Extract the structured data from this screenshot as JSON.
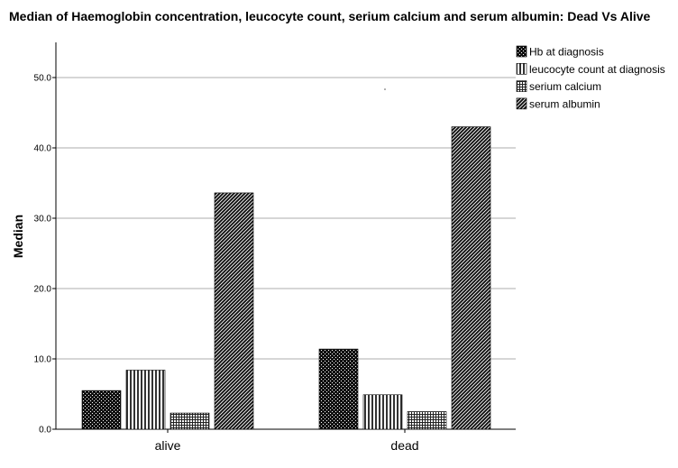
{
  "chart_data": {
    "type": "bar",
    "title": "Median of Haemoglobin concentration, leucocyte count, serium calcium and serum albumin: Dead Vs Alive",
    "ylabel": "Median",
    "xlabel": "",
    "categories": [
      "alive",
      "dead"
    ],
    "series": [
      {
        "name": "Hb at diagnosis",
        "values": [
          5.5,
          11.4
        ],
        "pattern": "pat-checker"
      },
      {
        "name": "leucocyte count at diagnosis",
        "values": [
          8.4,
          4.9
        ],
        "pattern": "pat-vlines"
      },
      {
        "name": "serium calcium",
        "values": [
          2.3,
          2.5
        ],
        "pattern": "pat-grid"
      },
      {
        "name": "serum albumin",
        "values": [
          33.6,
          43.0
        ],
        "pattern": "pat-diag"
      }
    ],
    "ylim": [
      0,
      55
    ],
    "yticks": [
      "0.0",
      "10.0",
      "20.0",
      "30.0",
      "40.0",
      "50.0"
    ],
    "ytick_values": [
      0,
      10,
      20,
      30,
      40,
      50
    ],
    "grid": true,
    "legend_position": "top-right",
    "colors": {
      "ink": "#000000",
      "grid": "#c8c8c8",
      "paper": "#ffffff"
    }
  }
}
